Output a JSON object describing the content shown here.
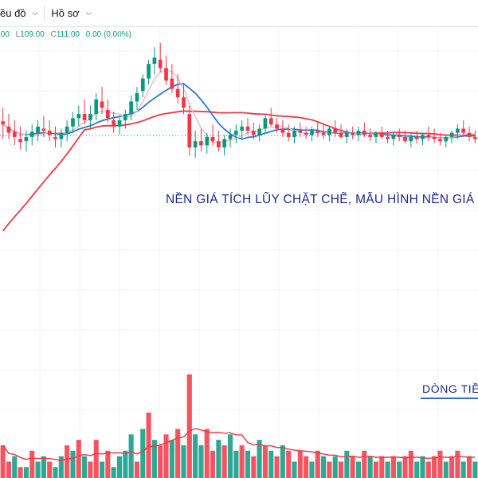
{
  "toolbar": {
    "chart_menu_label": "ều đồ",
    "profile_menu_label": "Hồ sơ"
  },
  "ohlc": {
    "open_tail": ".00",
    "low_key": "L",
    "low_value": "109.00",
    "close_key": "C",
    "close_value": "111.00",
    "change": "0.00 (0.00%)"
  },
  "annotations": {
    "base_pattern": "NỀN GIÁ TÍCH LŨY CHẶT CHẼ, MẪU HÌNH NỀN GIÁ P",
    "money_flow": "DÒNG TIỀ"
  },
  "colors": {
    "up": "#089981",
    "down": "#f23645",
    "ma_fast": "#f5b5bd",
    "ma_mid": "#2a7bd5",
    "ma_slow": "#f23645",
    "volume_ma": "#f23645",
    "annotation": "#1f2a8c",
    "price_line": "#089981"
  },
  "chart_data": {
    "type": "candlestick",
    "price_range": [
      40,
      330
    ],
    "candles": [
      [
        255,
        268,
        238,
        252
      ],
      [
        250,
        262,
        238,
        244
      ],
      [
        245,
        256,
        232,
        240
      ],
      [
        238,
        250,
        228,
        235
      ],
      [
        236,
        246,
        226,
        240
      ],
      [
        240,
        252,
        232,
        245
      ],
      [
        244,
        256,
        236,
        250
      ],
      [
        248,
        260,
        240,
        246
      ],
      [
        246,
        256,
        236,
        242
      ],
      [
        240,
        250,
        230,
        238
      ],
      [
        238,
        248,
        230,
        244
      ],
      [
        244,
        256,
        236,
        250
      ],
      [
        250,
        264,
        244,
        258
      ],
      [
        258,
        270,
        250,
        262
      ],
      [
        262,
        276,
        252,
        256
      ],
      [
        256,
        270,
        248,
        262
      ],
      [
        262,
        282,
        256,
        276
      ],
      [
        274,
        288,
        262,
        268
      ],
      [
        266,
        276,
        254,
        258
      ],
      [
        256,
        264,
        244,
        250
      ],
      [
        250,
        260,
        242,
        256
      ],
      [
        256,
        266,
        248,
        262
      ],
      [
        262,
        280,
        256,
        274
      ],
      [
        274,
        288,
        266,
        282
      ],
      [
        284,
        300,
        278,
        296
      ],
      [
        296,
        314,
        290,
        310
      ],
      [
        310,
        326,
        300,
        316
      ],
      [
        314,
        330,
        302,
        306
      ],
      [
        306,
        318,
        290,
        294
      ],
      [
        296,
        310,
        282,
        286
      ],
      [
        286,
        300,
        272,
        278
      ],
      [
        278,
        290,
        262,
        268
      ],
      [
        262,
        270,
        222,
        230
      ],
      [
        230,
        246,
        220,
        236
      ],
      [
        236,
        248,
        226,
        232
      ],
      [
        232,
        244,
        224,
        240
      ],
      [
        240,
        252,
        232,
        236
      ],
      [
        236,
        246,
        226,
        230
      ],
      [
        230,
        242,
        222,
        238
      ],
      [
        238,
        248,
        230,
        242
      ],
      [
        242,
        252,
        234,
        246
      ],
      [
        246,
        256,
        238,
        250
      ],
      [
        250,
        258,
        242,
        246
      ],
      [
        246,
        254,
        238,
        242
      ],
      [
        242,
        252,
        236,
        248
      ],
      [
        248,
        262,
        244,
        258
      ],
      [
        258,
        268,
        250,
        252
      ],
      [
        252,
        258,
        244,
        248
      ],
      [
        248,
        256,
        240,
        244
      ],
      [
        244,
        252,
        236,
        240
      ],
      [
        240,
        250,
        234,
        246
      ],
      [
        246,
        254,
        240,
        244
      ],
      [
        244,
        250,
        238,
        242
      ],
      [
        242,
        250,
        236,
        246
      ],
      [
        246,
        254,
        240,
        244
      ],
      [
        244,
        252,
        238,
        242
      ],
      [
        242,
        250,
        236,
        248
      ],
      [
        248,
        256,
        240,
        244
      ],
      [
        244,
        252,
        238,
        240
      ],
      [
        240,
        248,
        234,
        244
      ],
      [
        244,
        250,
        238,
        242
      ],
      [
        242,
        250,
        236,
        246
      ],
      [
        246,
        254,
        240,
        242
      ],
      [
        242,
        248,
        236,
        240
      ],
      [
        240,
        246,
        234,
        244
      ],
      [
        244,
        250,
        238,
        240
      ],
      [
        240,
        246,
        234,
        238
      ],
      [
        238,
        244,
        232,
        242
      ],
      [
        242,
        248,
        236,
        240
      ],
      [
        240,
        246,
        234,
        236
      ],
      [
        236,
        244,
        230,
        240
      ],
      [
        240,
        246,
        234,
        238
      ],
      [
        238,
        244,
        232,
        242
      ],
      [
        242,
        250,
        236,
        240
      ],
      [
        240,
        248,
        234,
        238
      ],
      [
        238,
        244,
        232,
        236
      ],
      [
        236,
        242,
        230,
        240
      ],
      [
        240,
        246,
        234,
        244
      ],
      [
        244,
        252,
        238,
        248
      ],
      [
        248,
        256,
        240,
        244
      ],
      [
        244,
        250,
        236,
        240
      ],
      [
        240,
        246,
        234,
        238
      ]
    ],
    "volume": [
      [
        6,
        "down"
      ],
      [
        3,
        "down"
      ],
      [
        4,
        "up"
      ],
      [
        2,
        "down"
      ],
      [
        2,
        "up"
      ],
      [
        5,
        "down"
      ],
      [
        3,
        "up"
      ],
      [
        4,
        "up"
      ],
      [
        3,
        "down"
      ],
      [
        2,
        "up"
      ],
      [
        4,
        "up"
      ],
      [
        6,
        "down"
      ],
      [
        5,
        "up"
      ],
      [
        7,
        "down"
      ],
      [
        4,
        "up"
      ],
      [
        3,
        "down"
      ],
      [
        7,
        "down"
      ],
      [
        3,
        "up"
      ],
      [
        5,
        "down"
      ],
      [
        2,
        "up"
      ],
      [
        4,
        "up"
      ],
      [
        5,
        "up"
      ],
      [
        8,
        "up"
      ],
      [
        3,
        "down"
      ],
      [
        9,
        "up"
      ],
      [
        12,
        "down"
      ],
      [
        7,
        "up"
      ],
      [
        6,
        "down"
      ],
      [
        8,
        "down"
      ],
      [
        7,
        "up"
      ],
      [
        9,
        "down"
      ],
      [
        6,
        "up"
      ],
      [
        19,
        "down"
      ],
      [
        8,
        "up"
      ],
      [
        6,
        "up"
      ],
      [
        9,
        "down"
      ],
      [
        5,
        "down"
      ],
      [
        7,
        "up"
      ],
      [
        6,
        "down"
      ],
      [
        8,
        "up"
      ],
      [
        5,
        "up"
      ],
      [
        6,
        "down"
      ],
      [
        5,
        "up"
      ],
      [
        4,
        "down"
      ],
      [
        7,
        "up"
      ],
      [
        6,
        "down"
      ],
      [
        5,
        "up"
      ],
      [
        4,
        "down"
      ],
      [
        6,
        "up"
      ],
      [
        5,
        "down"
      ],
      [
        3,
        "up"
      ],
      [
        5,
        "down"
      ],
      [
        4,
        "down"
      ],
      [
        3,
        "up"
      ],
      [
        5,
        "down"
      ],
      [
        4,
        "up"
      ],
      [
        3,
        "down"
      ],
      [
        4,
        "up"
      ],
      [
        3,
        "down"
      ],
      [
        5,
        "up"
      ],
      [
        4,
        "down"
      ],
      [
        3,
        "up"
      ],
      [
        5,
        "down"
      ],
      [
        4,
        "up"
      ],
      [
        3,
        "down"
      ],
      [
        4,
        "down"
      ],
      [
        3,
        "up"
      ],
      [
        4,
        "down"
      ],
      [
        3,
        "up"
      ],
      [
        4,
        "down"
      ],
      [
        5,
        "down"
      ],
      [
        3,
        "up"
      ],
      [
        4,
        "up"
      ],
      [
        3,
        "down"
      ],
      [
        4,
        "down"
      ],
      [
        5,
        "down"
      ],
      [
        3,
        "up"
      ],
      [
        4,
        "down"
      ],
      [
        5,
        "down"
      ],
      [
        3,
        "up"
      ],
      [
        4,
        "down"
      ],
      [
        3,
        "up"
      ]
    ]
  }
}
